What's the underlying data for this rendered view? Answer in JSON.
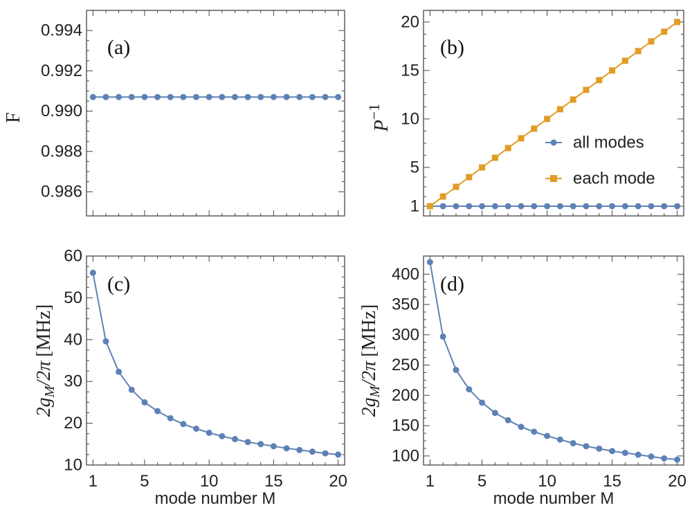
{
  "colors": {
    "series1": "#5e81b5",
    "series2": "#e19c24",
    "frame": "#444444",
    "text": "#222222"
  },
  "x_label": "mode number M",
  "chart_data": [
    {
      "id": "a",
      "type": "line",
      "panel_label": "(a)",
      "ylabel": "F",
      "xlabel": "",
      "xlim": [
        0.5,
        20.5
      ],
      "ylim": [
        0.9848,
        0.995
      ],
      "xticks": [
        1,
        5,
        10,
        15,
        20
      ],
      "yticks": [
        0.986,
        0.988,
        0.99,
        0.992,
        0.994
      ],
      "ytick_labels": [
        "0.986",
        "0.988",
        "0.990",
        "0.992",
        "0.994"
      ],
      "show_x_labels": false,
      "series": [
        {
          "name": "F",
          "marker": "circle",
          "color": "#5e81b5",
          "x": [
            1,
            2,
            3,
            4,
            5,
            6,
            7,
            8,
            9,
            10,
            11,
            12,
            13,
            14,
            15,
            16,
            17,
            18,
            19,
            20
          ],
          "y": [
            0.9907,
            0.9907,
            0.9907,
            0.9907,
            0.9907,
            0.9907,
            0.9907,
            0.9907,
            0.9907,
            0.9907,
            0.9907,
            0.9907,
            0.9907,
            0.9907,
            0.9907,
            0.9907,
            0.9907,
            0.9907,
            0.9907,
            0.9907
          ]
        }
      ]
    },
    {
      "id": "b",
      "type": "line",
      "panel_label": "(b)",
      "ylabel": "P",
      "ylabel_sup": "−1",
      "xlabel": "",
      "xlim": [
        0.5,
        20.5
      ],
      "ylim": [
        0,
        21.2
      ],
      "xticks": [
        1,
        5,
        10,
        15,
        20
      ],
      "yticks": [
        1,
        5,
        10,
        15,
        20
      ],
      "ytick_labels": [
        "1",
        "5",
        "10",
        "15",
        "20"
      ],
      "show_x_labels": false,
      "legend": {
        "position": "right",
        "entries": [
          "all modes",
          "each mode"
        ]
      },
      "series": [
        {
          "name": "all modes",
          "marker": "circle",
          "color": "#5e81b5",
          "x": [
            1,
            2,
            3,
            4,
            5,
            6,
            7,
            8,
            9,
            10,
            11,
            12,
            13,
            14,
            15,
            16,
            17,
            18,
            19,
            20
          ],
          "y": [
            1,
            1,
            1,
            1,
            1,
            1,
            1,
            1,
            1,
            1,
            1,
            1,
            1,
            1,
            1,
            1,
            1,
            1,
            1,
            1
          ]
        },
        {
          "name": "each mode",
          "marker": "square",
          "color": "#e19c24",
          "x": [
            1,
            2,
            3,
            4,
            5,
            6,
            7,
            8,
            9,
            10,
            11,
            12,
            13,
            14,
            15,
            16,
            17,
            18,
            19,
            20
          ],
          "y": [
            1,
            2,
            3,
            4,
            5,
            6,
            7,
            8,
            9,
            10,
            11,
            12,
            13,
            14,
            15,
            16,
            17,
            18,
            19,
            20
          ]
        }
      ]
    },
    {
      "id": "c",
      "type": "line",
      "panel_label": "(c)",
      "ylabel_main": "2g",
      "ylabel_sub": "M",
      "ylabel_tail": "/2π",
      "ylabel_units": "[MHz]",
      "xlabel": "mode number M",
      "xlim": [
        0.5,
        20.5
      ],
      "ylim": [
        10,
        60
      ],
      "xticks": [
        1,
        5,
        10,
        15,
        20
      ],
      "yticks": [
        10,
        20,
        30,
        40,
        50,
        60
      ],
      "ytick_labels": [
        "10",
        "20",
        "30",
        "40",
        "50",
        "60"
      ],
      "show_x_labels": true,
      "series": [
        {
          "name": "2g_M/2π",
          "marker": "circle",
          "color": "#5e81b5",
          "x": [
            1,
            2,
            3,
            4,
            5,
            6,
            7,
            8,
            9,
            10,
            11,
            12,
            13,
            14,
            15,
            16,
            17,
            18,
            19,
            20
          ],
          "y": [
            56.0,
            39.6,
            32.3,
            28.0,
            25.0,
            22.9,
            21.2,
            19.8,
            18.7,
            17.7,
            16.9,
            16.2,
            15.5,
            15.0,
            14.5,
            14.0,
            13.6,
            13.2,
            12.8,
            12.5
          ]
        }
      ]
    },
    {
      "id": "d",
      "type": "line",
      "panel_label": "(d)",
      "ylabel_main": "2g",
      "ylabel_sub": "M",
      "ylabel_tail": "/2π",
      "ylabel_units": "[MHz]",
      "xlabel": "mode number M",
      "xlim": [
        0.5,
        20.5
      ],
      "ylim": [
        85,
        430
      ],
      "xticks": [
        1,
        5,
        10,
        15,
        20
      ],
      "yticks": [
        100,
        150,
        200,
        250,
        300,
        350,
        400
      ],
      "ytick_labels": [
        "100",
        "150",
        "200",
        "250",
        "300",
        "350",
        "400"
      ],
      "show_x_labels": true,
      "series": [
        {
          "name": "2g_M/2π",
          "marker": "circle",
          "color": "#5e81b5",
          "x": [
            1,
            2,
            3,
            4,
            5,
            6,
            7,
            8,
            9,
            10,
            11,
            12,
            13,
            14,
            15,
            16,
            17,
            18,
            19,
            20
          ],
          "y": [
            420,
            297,
            242,
            210,
            188,
            171,
            159,
            148,
            140,
            133,
            127,
            121,
            116,
            112,
            108,
            105,
            102,
            99,
            96,
            94
          ]
        }
      ]
    }
  ]
}
